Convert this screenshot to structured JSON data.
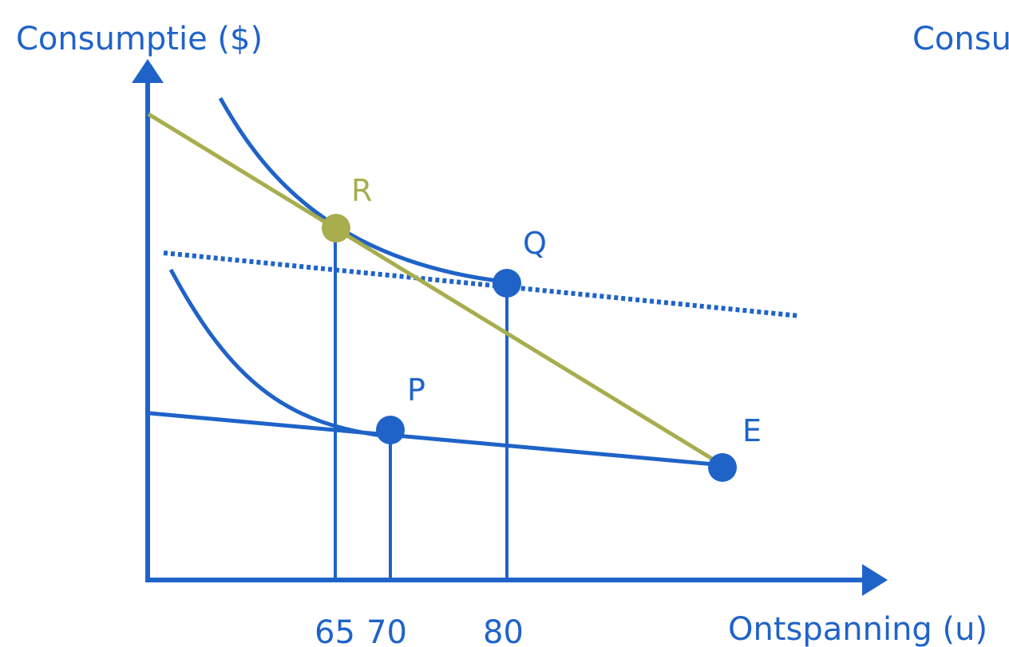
{
  "colors": {
    "blue": "#1f63c8",
    "olive": "#a8ad4e",
    "background": "#ffffff"
  },
  "axes": {
    "y_label": "Consumptie ($)",
    "x_label": "Ontspanning (u)",
    "right_cut_label": "Consu"
  },
  "ticks": {
    "t65": "65",
    "t70": "70",
    "t80": "80"
  },
  "points": {
    "R": "R",
    "Q": "Q",
    "P": "P",
    "E": "E"
  }
}
